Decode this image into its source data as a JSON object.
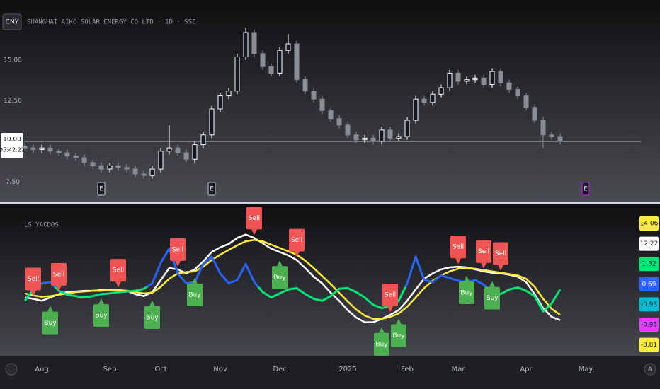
{
  "toolbar": {
    "currency": "CNY"
  },
  "footer": {
    "auto_button": "A"
  },
  "chart_data": [
    {
      "type": "candlestick",
      "title": "SHANGHAI AIKO SOLAR ENERGY CO LTD · 1D · SSE",
      "categories": [
        null,
        null,
        "Aug",
        null,
        null,
        null,
        null,
        null,
        null,
        null,
        "Sep",
        null,
        null,
        null,
        null,
        null,
        "Oct",
        null,
        null,
        null,
        null,
        null,
        null,
        "Nov",
        null,
        null,
        null,
        null,
        null,
        null,
        "Dec",
        null,
        null,
        null,
        null,
        null,
        null,
        null,
        "2025",
        null,
        null,
        null,
        null,
        null,
        null,
        "Feb",
        null,
        null,
        null,
        null,
        null,
        "Mar",
        null,
        null,
        null,
        null,
        null,
        null,
        null,
        "Apr",
        null,
        null,
        null,
        null,
        null,
        null,
        "May",
        null,
        null,
        null,
        null,
        null
      ],
      "open": [
        9.7,
        9.6,
        9.5,
        9.6,
        9.4,
        9.3,
        9.1,
        9.0,
        8.7,
        8.5,
        8.3,
        8.5,
        8.4,
        8.3,
        8.0,
        7.9,
        8.3,
        9.4,
        9.6,
        9.3,
        8.9,
        9.8,
        10.4,
        12.0,
        12.8,
        13.1,
        15.2,
        16.7,
        15.4,
        14.6,
        14.2,
        15.6,
        16.0,
        13.8,
        13.1,
        12.6,
        11.9,
        11.4,
        11.0,
        10.4,
        10.1,
        10.2,
        10.0,
        10.7,
        10.2,
        10.3,
        11.3,
        12.6,
        12.4,
        12.9,
        13.3,
        14.2,
        13.7,
        13.8,
        13.9,
        13.5,
        14.3,
        13.6,
        13.2,
        12.8,
        12.1,
        11.3,
        10.4,
        10.3,
        null,
        null,
        null,
        null,
        null,
        null,
        null,
        null
      ],
      "high": [
        9.9,
        9.8,
        9.8,
        9.8,
        9.6,
        9.5,
        9.3,
        9.2,
        8.9,
        8.7,
        8.7,
        8.7,
        8.6,
        8.5,
        8.2,
        8.5,
        9.6,
        11.0,
        9.8,
        9.5,
        10.0,
        10.6,
        12.2,
        13.0,
        13.3,
        15.4,
        17.0,
        16.9,
        15.6,
        14.8,
        15.8,
        16.6,
        16.2,
        14.0,
        13.3,
        12.8,
        12.1,
        11.6,
        11.2,
        10.6,
        10.4,
        10.4,
        10.9,
        10.9,
        10.5,
        11.5,
        12.8,
        12.8,
        13.1,
        13.5,
        14.4,
        14.4,
        14.0,
        14.1,
        14.1,
        14.5,
        14.5,
        13.8,
        13.4,
        13.0,
        12.3,
        11.5,
        10.6,
        10.5,
        null,
        null,
        null,
        null,
        null,
        null,
        null,
        null
      ],
      "low": [
        9.4,
        9.3,
        9.3,
        9.2,
        9.1,
        8.9,
        8.8,
        8.5,
        8.3,
        8.1,
        8.1,
        8.2,
        8.1,
        7.8,
        7.7,
        7.7,
        8.1,
        9.2,
        9.1,
        8.7,
        8.7,
        9.6,
        10.2,
        11.8,
        12.6,
        12.9,
        15.0,
        15.2,
        14.4,
        14.0,
        14.0,
        15.4,
        13.6,
        12.9,
        12.4,
        11.7,
        11.2,
        10.8,
        10.2,
        9.9,
        9.9,
        9.8,
        9.8,
        10.0,
        10.0,
        10.1,
        11.1,
        12.2,
        12.2,
        12.7,
        13.1,
        13.5,
        13.5,
        13.6,
        13.3,
        13.3,
        13.4,
        13.0,
        12.6,
        11.9,
        11.1,
        9.6,
        10.1,
        9.8,
        null,
        null,
        null,
        null,
        null,
        null,
        null,
        null
      ],
      "close": [
        9.6,
        9.5,
        9.6,
        9.4,
        9.3,
        9.1,
        9.0,
        8.7,
        8.5,
        8.3,
        8.5,
        8.4,
        8.3,
        8.0,
        7.9,
        8.3,
        9.4,
        9.6,
        9.3,
        8.9,
        9.8,
        10.4,
        12.0,
        12.8,
        13.1,
        15.2,
        16.7,
        15.4,
        14.6,
        14.2,
        15.6,
        16.0,
        13.8,
        13.1,
        12.6,
        11.9,
        11.4,
        11.0,
        10.4,
        10.1,
        10.2,
        10.0,
        10.7,
        10.2,
        10.3,
        11.3,
        12.6,
        12.4,
        12.9,
        13.3,
        14.2,
        13.7,
        13.8,
        13.9,
        13.5,
        14.3,
        13.6,
        13.2,
        12.8,
        12.1,
        11.3,
        10.4,
        10.3,
        10.0,
        null,
        null,
        null,
        null,
        null,
        null,
        null,
        null
      ],
      "up_color": "#ffffff",
      "down_color": "#8a8d96",
      "ylim": [
        6.3,
        18.7
      ],
      "yticks": [
        {
          "value": 7.5,
          "label": "7.50"
        },
        {
          "value": 12.5,
          "label": "12.50"
        },
        {
          "value": 15,
          "label": "15.00"
        }
      ],
      "last_price": {
        "value": 10,
        "label": "10.00"
      },
      "countdown": "05:42:22",
      "events": [
        {
          "label": "E",
          "index": 9,
          "color": "#9598a1"
        },
        {
          "label": "E",
          "index": 22,
          "color": "#9598a1"
        },
        {
          "label": "E",
          "index": 66,
          "color": "#9c27b0"
        }
      ]
    },
    {
      "type": "oscillator",
      "title": "LS YACDOS",
      "ylim": [
        -10,
        12
      ],
      "series": [
        {
          "color": "#ffffff",
          "values": [
            -1.6,
            -1.8,
            -2.1,
            -1.6,
            -1.1,
            -0.8,
            -0.7,
            -0.6,
            -0.6,
            -0.5,
            -0.4,
            -0.5,
            -0.6,
            -1.1,
            -1.4,
            -0.8,
            1.0,
            2.8,
            2.6,
            2.0,
            2.6,
            3.8,
            5.2,
            5.9,
            6.4,
            7.3,
            7.8,
            7.3,
            6.5,
            5.7,
            5.2,
            4.7,
            4.0,
            2.8,
            1.5,
            0.5,
            -0.9,
            -2.1,
            -3.5,
            -4.6,
            -5.3,
            -5.3,
            -4.8,
            -4.2,
            -3.5,
            -2.1,
            -0.4,
            1.2,
            2.0,
            2.6,
            2.9,
            3.0,
            2.9,
            2.6,
            2.3,
            2.1,
            2.0,
            1.8,
            1.5,
            0.7,
            -1.1,
            -3.2,
            -4.5,
            -5.0,
            null,
            null,
            null,
            null,
            null,
            null,
            null,
            null
          ]
        },
        {
          "color": "#ffeb3b",
          "values": [
            -1.0,
            -1.3,
            -1.5,
            -1.4,
            -1.2,
            -1.0,
            -0.8,
            -0.7,
            -0.6,
            -0.6,
            -0.5,
            -0.5,
            -0.6,
            -0.8,
            -1.0,
            -0.9,
            0.0,
            1.2,
            2.0,
            2.2,
            2.3,
            3.0,
            4.0,
            4.8,
            5.5,
            6.2,
            6.8,
            7.0,
            6.8,
            6.3,
            5.8,
            5.3,
            4.8,
            3.9,
            2.8,
            1.6,
            0.4,
            -0.9,
            -2.2,
            -3.4,
            -4.3,
            -4.8,
            -4.8,
            -4.5,
            -4.0,
            -3.0,
            -1.6,
            -0.2,
            0.9,
            1.7,
            2.3,
            2.7,
            2.8,
            2.7,
            2.5,
            2.3,
            2.1,
            1.9,
            1.7,
            1.2,
            0.0,
            -1.8,
            -3.3,
            -4.2,
            null,
            null,
            null,
            null,
            null,
            null,
            null,
            null
          ]
        },
        {
          "color": "#2962ff",
          "color_down": "#00e676",
          "values": [
            -2.1,
            -0.4,
            0.5,
            0.7,
            -0.6,
            -1.2,
            -1.4,
            -1.6,
            -1.4,
            -1.1,
            -1.0,
            -0.8,
            -0.7,
            -0.6,
            -0.3,
            0.5,
            3.6,
            5.7,
            2.0,
            0.5,
            0.7,
            3.4,
            4.5,
            2.0,
            0.5,
            1.0,
            3.4,
            0.7,
            -0.8,
            -1.6,
            -1.0,
            -0.4,
            -0.2,
            -1.1,
            -1.8,
            -2.1,
            -1.4,
            -0.3,
            -0.2,
            -0.8,
            -1.6,
            -2.7,
            -3.2,
            -2.9,
            -2.1,
            0.5,
            4.5,
            1.0,
            0.7,
            1.7,
            1.3,
            0.9,
            0.7,
            1.0,
            0.3,
            -0.8,
            -1.1,
            -0.4,
            -0.1,
            -0.6,
            -1.4,
            -3.7,
            -2.5,
            -0.4,
            null,
            null,
            null,
            null,
            null,
            null,
            null,
            null
          ]
        }
      ],
      "signals": [
        {
          "label": "Sell",
          "index": 1
        },
        {
          "label": "Buy",
          "index": 3
        },
        {
          "label": "Sell",
          "index": 4
        },
        {
          "label": "Buy",
          "index": 9
        },
        {
          "label": "Sell",
          "index": 11
        },
        {
          "label": "Buy",
          "index": 15
        },
        {
          "label": "Sell",
          "index": 18
        },
        {
          "label": "Buy",
          "index": 20
        },
        {
          "label": "Sell",
          "index": 27
        },
        {
          "label": "Buy",
          "index": 30
        },
        {
          "label": "Sell",
          "index": 32
        },
        {
          "label": "Buy",
          "index": 42
        },
        {
          "label": "Sell",
          "index": 43
        },
        {
          "label": "Buy",
          "index": 44
        },
        {
          "label": "Sell",
          "index": 51
        },
        {
          "label": "Buy",
          "index": 52
        },
        {
          "label": "Sell",
          "index": 54
        },
        {
          "label": "Buy",
          "index": 55
        },
        {
          "label": "Sell",
          "index": 56
        }
      ],
      "scale_labels": [
        {
          "value": 14.06,
          "color": "#ffeb3b"
        },
        {
          "value": 12.22,
          "color": "#ffffff"
        },
        {
          "value": 1.32,
          "color": "#00e676"
        },
        {
          "value": 0.69,
          "color": "#2962ff"
        },
        {
          "value": -0.93,
          "color": "#00bcd4"
        },
        {
          "value": -0.93,
          "color": "#e040fb"
        },
        {
          "value": -3.81,
          "color": "#ffeb3b"
        }
      ]
    }
  ]
}
